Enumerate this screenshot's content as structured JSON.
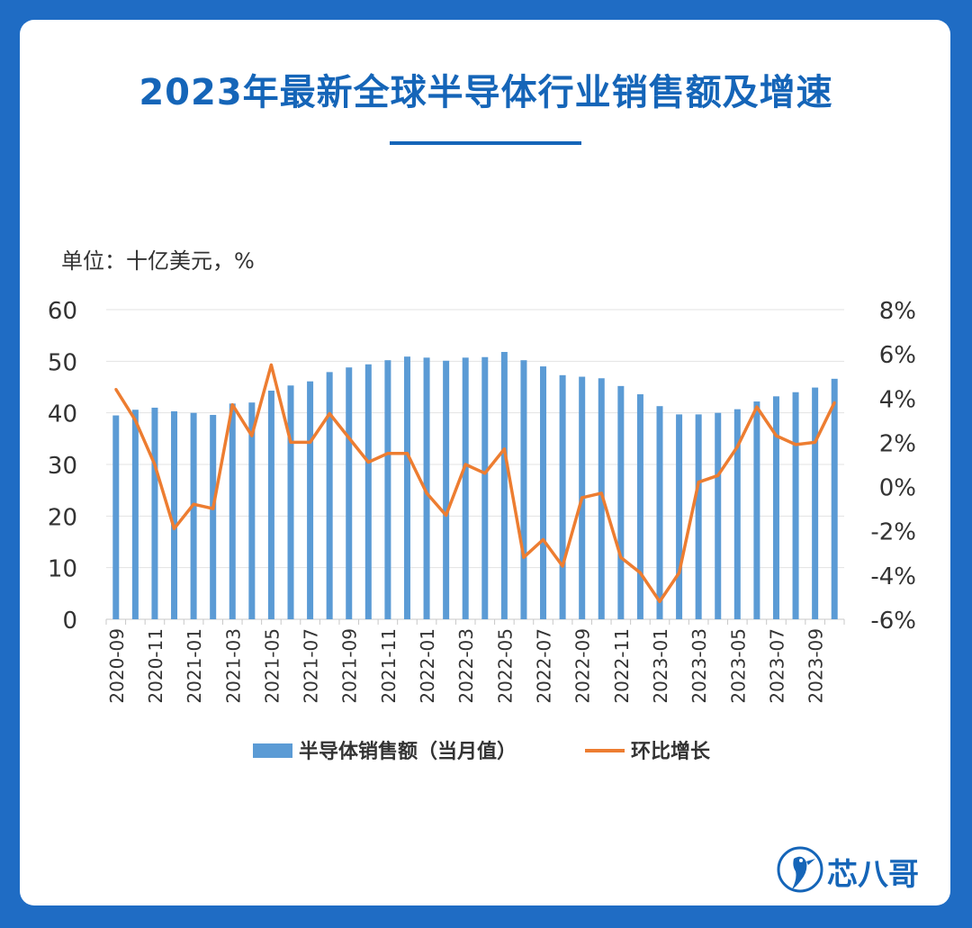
{
  "title": "2023年最新全球半导体行业销售额及增速",
  "unit_label": "单位：十亿美元，%",
  "brand": {
    "name": "芯八哥",
    "logo_icon": "bird-logo-icon"
  },
  "colors": {
    "bar": "#5b9bd5",
    "line": "#ed7d31",
    "accent": "#1565b8",
    "background": "#1f6cc4"
  },
  "chart_data": {
    "type": "bar",
    "categories": [
      "2020-09",
      "2020-10",
      "2020-11",
      "2020-12",
      "2021-01",
      "2021-02",
      "2021-03",
      "2021-04",
      "2021-05",
      "2021-06",
      "2021-07",
      "2021-08",
      "2021-09",
      "2021-10",
      "2021-11",
      "2021-12",
      "2022-01",
      "2022-02",
      "2022-03",
      "2022-04",
      "2022-05",
      "2022-06",
      "2022-07",
      "2022-08",
      "2022-09",
      "2022-10",
      "2022-11",
      "2022-12",
      "2023-01",
      "2023-02",
      "2023-03",
      "2023-04",
      "2023-05",
      "2023-06",
      "2023-07",
      "2023-08",
      "2023-09",
      "2023-10"
    ],
    "x_tick_labels": [
      "2020-09",
      "2020-11",
      "2021-01",
      "2021-03",
      "2021-05",
      "2021-07",
      "2021-09",
      "2021-11",
      "2022-01",
      "2022-03",
      "2022-05",
      "2022-07",
      "2022-09",
      "2022-11",
      "2023-01",
      "2023-03",
      "2023-05",
      "2023-07",
      "2023-09"
    ],
    "series": [
      {
        "name": "半导体销售额（当月值）",
        "type": "bar",
        "axis": "left",
        "values": [
          39.5,
          40.6,
          41.0,
          40.3,
          40.0,
          39.6,
          41.8,
          42.0,
          44.3,
          45.3,
          46.1,
          47.9,
          48.8,
          49.4,
          50.2,
          50.9,
          50.7,
          50.1,
          50.7,
          50.8,
          51.8,
          50.2,
          49.0,
          47.3,
          47.0,
          46.7,
          45.2,
          43.6,
          41.3,
          39.7,
          39.7,
          40.0,
          40.7,
          42.2,
          43.2,
          44.0,
          44.9,
          46.6
        ]
      },
      {
        "name": "环比增长",
        "type": "line",
        "axis": "right",
        "values": [
          4.4,
          3.0,
          1.0,
          -1.9,
          -0.8,
          -1.0,
          3.7,
          2.3,
          5.5,
          2.0,
          2.0,
          3.3,
          2.2,
          1.1,
          1.5,
          1.5,
          -0.3,
          -1.3,
          1.0,
          0.6,
          1.7,
          -3.2,
          -2.4,
          -3.6,
          -0.5,
          -0.3,
          -3.2,
          -3.9,
          -5.2,
          -3.9,
          0.2,
          0.5,
          1.8,
          3.6,
          2.3,
          1.9,
          2.0,
          3.8
        ]
      }
    ],
    "y_left": {
      "min": 0,
      "max": 60,
      "ticks": [
        "0",
        "10",
        "20",
        "30",
        "40",
        "50",
        "60"
      ]
    },
    "y_right": {
      "min": -6,
      "max": 8,
      "ticks": [
        "-6%",
        "-4%",
        "-2%",
        "0%",
        "2%",
        "4%",
        "6%",
        "8%"
      ]
    },
    "grid": true,
    "legend_position": "bottom"
  }
}
